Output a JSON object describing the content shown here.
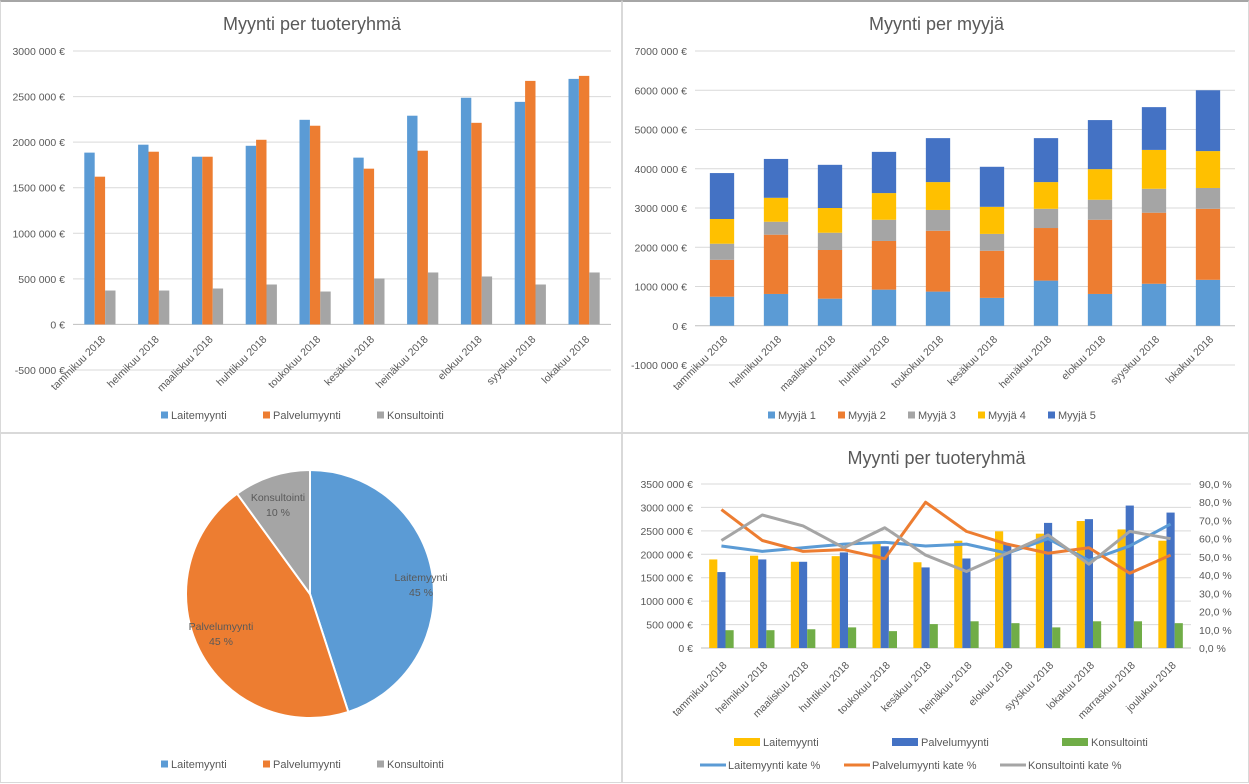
{
  "chart_data": [
    {
      "id": "top-left",
      "type": "bar",
      "title": "Myynti per tuoteryhmä",
      "xlabel": "",
      "ylabel": "",
      "ylim": [
        -500000,
        3000000
      ],
      "yticks": [
        -500000,
        0,
        500000,
        1000000,
        1500000,
        2000000,
        2500000,
        3000000
      ],
      "ytick_labels": [
        "-500 000 €",
        "0 €",
        "500 000 €",
        "1000 000 €",
        "1500 000 €",
        "2000 000 €",
        "2500 000 €",
        "3000 000 €"
      ],
      "grid": true,
      "legend_position": "bottom",
      "categories": [
        "tammikuu 2018",
        "helmikuu 2018",
        "maaliskuu 2018",
        "huhtikuu 2018",
        "toukokuu 2018",
        "kesäkuu 2018",
        "heinäkuu 2018",
        "elokuu 2018",
        "syyskuu 2018",
        "lokakuu 2018"
      ],
      "series": [
        {
          "name": "Laitemyynti",
          "color": "#5B9BD5",
          "values": [
            1885000,
            1972000,
            1840000,
            1960000,
            2245000,
            1830000,
            2290000,
            2487000,
            2442000,
            2694000
          ]
        },
        {
          "name": "Palvelumyynti",
          "color": "#ED7D31",
          "values": [
            1621000,
            1895000,
            1840000,
            2026000,
            2180000,
            1709000,
            1906000,
            2212000,
            2672000,
            2727000
          ]
        },
        {
          "name": "Konsultointi",
          "color": "#A5A5A5",
          "values": [
            372000,
            372000,
            394000,
            438000,
            361000,
            504000,
            570000,
            526000,
            438000,
            570000
          ]
        }
      ]
    },
    {
      "id": "top-right",
      "type": "bar",
      "stacked": true,
      "title": "Myynti per myyjä",
      "xlabel": "",
      "ylabel": "",
      "ylim": [
        -1000000,
        7000000
      ],
      "yticks": [
        -1000000,
        0,
        1000000,
        2000000,
        3000000,
        4000000,
        5000000,
        6000000,
        7000000
      ],
      "ytick_labels": [
        "-1000 000 €",
        "0 €",
        "1000 000 €",
        "2000 000 €",
        "3000 000 €",
        "4000 000 €",
        "5000 000 €",
        "6000 000 €",
        "7000 000 €"
      ],
      "grid": true,
      "legend_position": "bottom",
      "categories": [
        "tammikuu 2018",
        "helmikuu 2018",
        "maaliskuu 2018",
        "huhtikuu 2018",
        "toukokuu 2018",
        "kesäkuu 2018",
        "heinäkuu 2018",
        "elokuu 2018",
        "syyskuu 2018",
        "lokakuu 2018"
      ],
      "series": [
        {
          "name": "Myyjä 1",
          "color": "#5B9BD5",
          "values": [
            740000,
            810000,
            690000,
            920000,
            870000,
            710000,
            1150000,
            810000,
            1070000,
            1170000
          ]
        },
        {
          "name": "Myyjä 2",
          "color": "#ED7D31",
          "values": [
            940000,
            1510000,
            1240000,
            1240000,
            1550000,
            1200000,
            1340000,
            1890000,
            1810000,
            1810000
          ]
        },
        {
          "name": "Myyjä 3",
          "color": "#A5A5A5",
          "values": [
            410000,
            330000,
            440000,
            540000,
            530000,
            430000,
            490000,
            510000,
            610000,
            530000
          ]
        },
        {
          "name": "Myyjä 4",
          "color": "#FFC000",
          "values": [
            630000,
            610000,
            630000,
            680000,
            710000,
            690000,
            680000,
            780000,
            990000,
            940000
          ]
        },
        {
          "name": "Myyjä 5",
          "color": "#4472C4",
          "values": [
            1170000,
            990000,
            1100000,
            1050000,
            1120000,
            1020000,
            1120000,
            1250000,
            1090000,
            1550000
          ]
        }
      ]
    },
    {
      "id": "bottom-left",
      "type": "pie",
      "title": "",
      "legend_position": "bottom",
      "slices": [
        {
          "name": "Laitemyynti",
          "value": 45,
          "label": "Laitemyynti",
          "pct_label": "45 %",
          "color": "#5B9BD5"
        },
        {
          "name": "Palvelumyynti",
          "value": 45,
          "label": "Palvelumyynti",
          "pct_label": "45 %",
          "color": "#ED7D31"
        },
        {
          "name": "Konsultointi",
          "value": 10,
          "label": "Konsultointi",
          "pct_label": "10 %",
          "color": "#A5A5A5"
        }
      ]
    },
    {
      "id": "bottom-right",
      "type": "bar",
      "combo": true,
      "title": "Myynti per tuoteryhmä",
      "xlabel": "",
      "ylabel": "",
      "ylim": [
        0,
        3500000
      ],
      "yticks": [
        0,
        500000,
        1000000,
        1500000,
        2000000,
        2500000,
        3000000,
        3500000
      ],
      "ytick_labels": [
        "0 €",
        "500 000 €",
        "1000 000 €",
        "1500 000 €",
        "2000 000 €",
        "2500 000 €",
        "3000 000 €",
        "3500 000 €"
      ],
      "y2lim": [
        0,
        90
      ],
      "y2ticks": [
        0,
        10,
        20,
        30,
        40,
        50,
        60,
        70,
        80,
        90
      ],
      "y2tick_labels": [
        "0,0 %",
        "10,0 %",
        "20,0 %",
        "30,0 %",
        "40,0 %",
        "50,0 %",
        "60,0 %",
        "70,0 %",
        "80,0 %",
        "90,0 %"
      ],
      "grid": true,
      "legend_position": "bottom",
      "categories": [
        "tammikuu 2018",
        "helmikuu 2018",
        "maaliskuu 2018",
        "huhtikuu 2018",
        "toukokuu 2018",
        "kesäkuu 2018",
        "heinäkuu 2018",
        "elokuu 2018",
        "syyskuu 2018",
        "lokakuu 2018",
        "marraskuu 2018",
        "joulukuu 2018"
      ],
      "series": [
        {
          "name": "Laitemyynti",
          "kind": "bar",
          "axis": "left",
          "color": "#FFC000",
          "values": [
            1890000,
            1970000,
            1840000,
            1960000,
            2240000,
            1830000,
            2290000,
            2490000,
            2440000,
            2710000,
            2530000,
            2290000
          ]
        },
        {
          "name": "Palvelumyynti",
          "kind": "bar",
          "axis": "left",
          "color": "#4472C4",
          "values": [
            1620000,
            1890000,
            1840000,
            2040000,
            2170000,
            1720000,
            1910000,
            2210000,
            2670000,
            2750000,
            3040000,
            2890000
          ]
        },
        {
          "name": "Konsultointi",
          "kind": "bar",
          "axis": "left",
          "color": "#70AD47",
          "values": [
            380000,
            380000,
            400000,
            440000,
            360000,
            510000,
            570000,
            530000,
            440000,
            570000,
            570000,
            530000
          ]
        },
        {
          "name": "Laitemyynti kate %",
          "kind": "line",
          "axis": "right",
          "color": "#5B9BD5",
          "values": [
            56,
            53,
            55,
            57,
            58,
            56,
            57,
            52,
            60,
            48,
            56,
            68
          ]
        },
        {
          "name": "Palvelumyynti kate %",
          "kind": "line",
          "axis": "right",
          "color": "#ED7D31",
          "values": [
            76,
            59,
            53,
            54,
            49,
            80,
            64,
            57,
            52,
            55,
            41,
            51
          ]
        },
        {
          "name": "Konsultointi kate %",
          "kind": "line",
          "axis": "right",
          "color": "#A5A5A5",
          "values": [
            59,
            73,
            67,
            55,
            66,
            51,
            42,
            52,
            62,
            46,
            64,
            60
          ]
        }
      ]
    }
  ]
}
